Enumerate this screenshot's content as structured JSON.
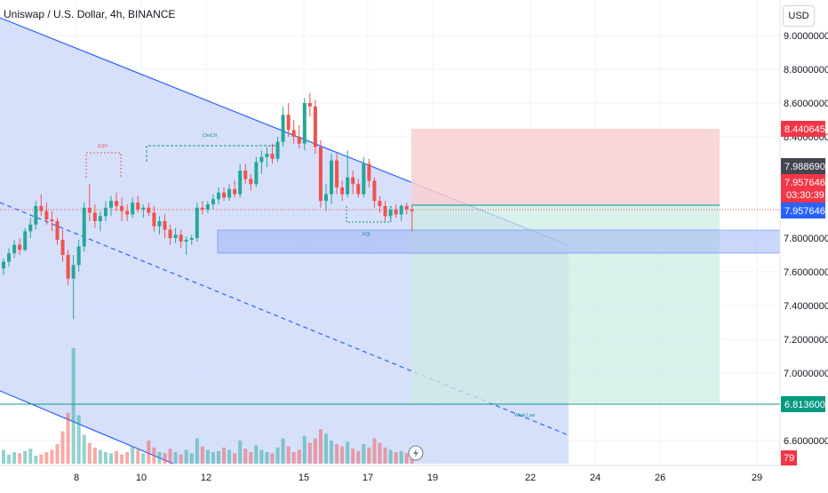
{
  "header": {
    "title": "Uniswap / U.S. Dollar, 4h, BINANCE",
    "currency": "USD"
  },
  "colors": {
    "up": "#26a69a",
    "down": "#ef5350",
    "channel_fill": "#c9d6f9",
    "channel_line": "#2962ff",
    "stop_zone": "#f8cfd2",
    "target_zone": "#cdebe3",
    "zone_band": "#9fb6f5"
  },
  "chart_data": {
    "type": "candlestick",
    "title": "Uniswap / U.S. Dollar, 4h, BINANCE",
    "price_axis": {
      "ticks": [
        "9.0000000",
        "8.8000000",
        "8.6000000",
        "8.4000000",
        "7.8000000",
        "7.6000000",
        "7.4000000",
        "7.2000000",
        "7.0000000",
        "6.6000000"
      ],
      "range": [
        6.5,
        9.1
      ]
    },
    "time_axis": {
      "ticks": [
        "8",
        "10",
        "12",
        "15",
        "17",
        "19",
        "22",
        "24",
        "26",
        "29"
      ]
    },
    "price_tags": [
      {
        "label": "8.4406450",
        "type": "stop-loss"
      },
      {
        "label": "7.9886900",
        "type": "high"
      },
      {
        "label": "7.9576463",
        "type": "last-price"
      },
      {
        "label": "03:30:39",
        "type": "countdown"
      },
      {
        "label": "7.9576463",
        "type": "entry"
      },
      {
        "label": "6.8136000",
        "type": "target"
      },
      {
        "label": "79",
        "type": "volume"
      }
    ],
    "annotations": [
      "EQH",
      "ChoCH",
      "EQL",
      "Weak Low"
    ],
    "candles": [
      [
        7.62,
        7.68,
        7.58,
        7.66
      ],
      [
        7.66,
        7.74,
        7.63,
        7.71
      ],
      [
        7.71,
        7.79,
        7.68,
        7.76
      ],
      [
        7.76,
        7.8,
        7.7,
        7.73
      ],
      [
        7.73,
        7.86,
        7.72,
        7.84
      ],
      [
        7.84,
        7.92,
        7.8,
        7.88
      ],
      [
        7.88,
        8.02,
        7.85,
        7.99
      ],
      [
        7.99,
        8.06,
        7.93,
        7.96
      ],
      [
        7.96,
        8.01,
        7.88,
        7.91
      ],
      [
        7.91,
        7.96,
        7.84,
        7.9
      ],
      [
        7.9,
        7.92,
        7.76,
        7.79
      ],
      [
        7.79,
        7.85,
        7.66,
        7.7
      ],
      [
        7.7,
        7.73,
        7.52,
        7.56
      ],
      [
        7.56,
        7.7,
        7.32,
        7.64
      ],
      [
        7.64,
        7.79,
        7.6,
        7.75
      ],
      [
        7.75,
        8.01,
        7.72,
        7.98
      ],
      [
        7.98,
        8.12,
        7.9,
        7.95
      ],
      [
        7.95,
        8.0,
        7.86,
        7.9
      ],
      [
        7.9,
        7.96,
        7.84,
        7.93
      ],
      [
        7.93,
        8.02,
        7.9,
        7.98
      ],
      [
        7.98,
        8.05,
        7.93,
        8.02
      ],
      [
        8.02,
        8.07,
        7.96,
        7.99
      ],
      [
        7.99,
        8.04,
        7.9,
        7.96
      ],
      [
        7.96,
        8.0,
        7.9,
        7.94
      ],
      [
        7.94,
        8.04,
        7.92,
        8.01
      ],
      [
        8.01,
        8.05,
        7.95,
        7.97
      ],
      [
        7.97,
        8.0,
        7.92,
        7.98
      ],
      [
        7.98,
        8.01,
        7.93,
        7.95
      ],
      [
        7.95,
        7.99,
        7.84,
        7.87
      ],
      [
        7.87,
        7.93,
        7.82,
        7.9
      ],
      [
        7.9,
        7.94,
        7.8,
        7.85
      ],
      [
        7.85,
        7.88,
        7.76,
        7.8
      ],
      [
        7.8,
        7.86,
        7.77,
        7.82
      ],
      [
        7.82,
        7.85,
        7.74,
        7.78
      ],
      [
        7.78,
        7.81,
        7.7,
        7.79
      ],
      [
        7.79,
        7.82,
        7.76,
        7.8
      ],
      [
        7.8,
        8.01,
        7.78,
        7.98
      ],
      [
        7.98,
        8.02,
        7.94,
        7.97
      ],
      [
        7.97,
        8.02,
        7.95,
        8.0
      ],
      [
        8.0,
        8.06,
        7.97,
        8.03
      ],
      [
        8.03,
        8.1,
        8.0,
        8.07
      ],
      [
        8.07,
        8.1,
        8.02,
        8.04
      ],
      [
        8.04,
        8.12,
        8.02,
        8.09
      ],
      [
        8.09,
        8.14,
        8.04,
        8.06
      ],
      [
        8.06,
        8.24,
        8.04,
        8.2
      ],
      [
        8.2,
        8.24,
        8.12,
        8.15
      ],
      [
        8.15,
        8.18,
        8.08,
        8.12
      ],
      [
        8.12,
        8.28,
        8.1,
        8.25
      ],
      [
        8.25,
        8.32,
        8.18,
        8.28
      ],
      [
        8.28,
        8.34,
        8.22,
        8.3
      ],
      [
        8.3,
        8.36,
        8.24,
        8.27
      ],
      [
        8.27,
        8.4,
        8.25,
        8.37
      ],
      [
        8.37,
        8.58,
        8.34,
        8.53
      ],
      [
        8.53,
        8.6,
        8.4,
        8.44
      ],
      [
        8.44,
        8.5,
        8.36,
        8.4
      ],
      [
        8.4,
        8.47,
        8.33,
        8.36
      ],
      [
        8.36,
        8.63,
        8.32,
        8.6
      ],
      [
        8.6,
        8.66,
        8.52,
        8.58
      ],
      [
        8.58,
        8.62,
        8.3,
        8.34
      ],
      [
        8.34,
        8.38,
        7.98,
        8.02
      ],
      [
        8.02,
        8.12,
        7.96,
        8.06
      ],
      [
        8.06,
        8.3,
        8.0,
        8.26
      ],
      [
        8.26,
        8.3,
        8.06,
        8.1
      ],
      [
        8.1,
        8.14,
        8.02,
        8.06
      ],
      [
        8.06,
        8.32,
        8.04,
        8.16
      ],
      [
        8.16,
        8.2,
        8.06,
        8.12
      ],
      [
        8.12,
        8.15,
        8.04,
        8.06
      ],
      [
        8.06,
        8.28,
        8.04,
        8.24
      ],
      [
        8.24,
        8.27,
        8.1,
        8.14
      ],
      [
        8.14,
        8.16,
        7.98,
        8.02
      ],
      [
        8.02,
        8.05,
        7.95,
        7.99
      ],
      [
        7.99,
        8.02,
        7.9,
        7.93
      ],
      [
        7.93,
        7.99,
        7.9,
        7.97
      ],
      [
        7.97,
        8.0,
        7.92,
        7.94
      ],
      [
        7.94,
        8.0,
        7.9,
        7.99
      ],
      [
        7.99,
        8.01,
        7.94,
        7.97
      ],
      [
        7.97,
        7.99,
        7.84,
        7.96
      ]
    ],
    "volume": [
      0.12,
      0.08,
      0.1,
      0.09,
      0.11,
      0.13,
      0.07,
      0.08,
      0.1,
      0.12,
      0.17,
      0.28,
      0.44,
      1.0,
      0.42,
      0.25,
      0.18,
      0.14,
      0.12,
      0.1,
      0.09,
      0.11,
      0.08,
      0.1,
      0.15,
      0.12,
      0.09,
      0.2,
      0.14,
      0.1,
      0.09,
      0.13,
      0.1,
      0.08,
      0.12,
      0.09,
      0.22,
      0.15,
      0.12,
      0.1,
      0.11,
      0.14,
      0.12,
      0.09,
      0.2,
      0.13,
      0.1,
      0.16,
      0.12,
      0.1,
      0.09,
      0.14,
      0.22,
      0.15,
      0.1,
      0.12,
      0.24,
      0.18,
      0.22,
      0.3,
      0.26,
      0.2,
      0.17,
      0.15,
      0.19,
      0.13,
      0.11,
      0.17,
      0.14,
      0.22,
      0.18,
      0.14,
      0.12,
      0.1,
      0.11,
      0.09,
      0.08
    ]
  }
}
